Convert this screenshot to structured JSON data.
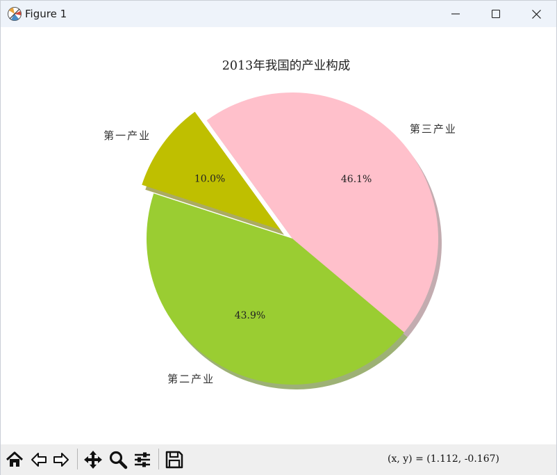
{
  "window": {
    "title": "Figure 1"
  },
  "toolbar": {
    "buttons": [
      {
        "name": "home",
        "icon": "home-icon"
      },
      {
        "name": "back",
        "icon": "back-arrow-icon"
      },
      {
        "name": "forward",
        "icon": "forward-arrow-icon"
      },
      {
        "name": "pan",
        "icon": "pan-move-icon"
      },
      {
        "name": "zoom",
        "icon": "zoom-magnifier-icon"
      },
      {
        "name": "configure",
        "icon": "sliders-icon"
      },
      {
        "name": "save",
        "icon": "save-floppy-icon"
      }
    ],
    "coordinates": "(x, y) = (1.112, -0.167)"
  },
  "chart_data": {
    "type": "pie",
    "title": "2013年我国的产业构成",
    "slices": [
      {
        "label": "第一产业",
        "value": 10.0,
        "pct_label": "10.0%",
        "color": "#bfbf00",
        "explode": true
      },
      {
        "label": "第二产业",
        "value": 43.9,
        "pct_label": "43.9%",
        "color": "#9acd32",
        "explode": false
      },
      {
        "label": "第三产业",
        "value": 46.1,
        "pct_label": "46.1%",
        "color": "#ffc0cb",
        "explode": false
      }
    ],
    "start_angle": 126,
    "shadow": true,
    "legend": false
  }
}
